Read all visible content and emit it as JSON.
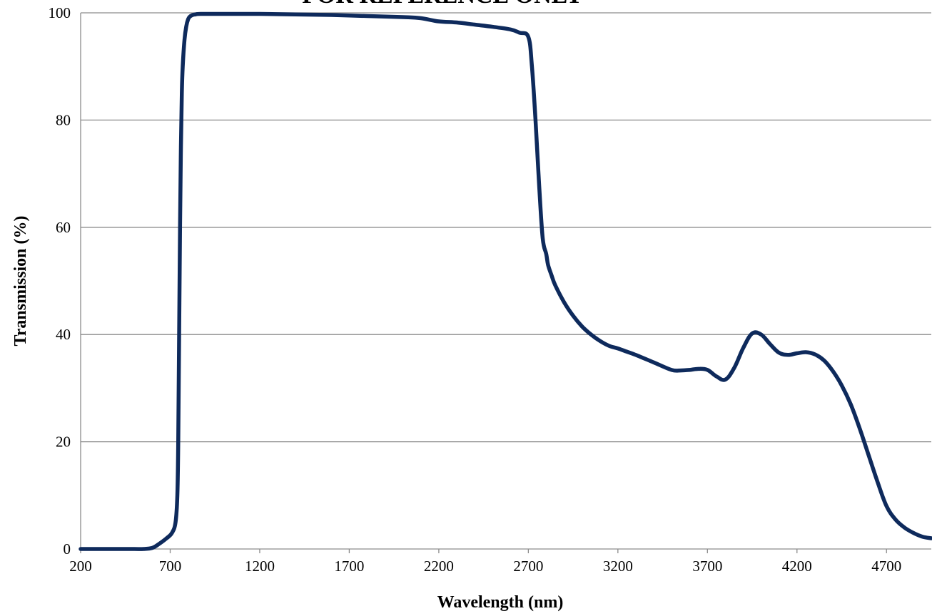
{
  "watermark": "FOR REFERENCE ONLY",
  "chart_data": {
    "type": "line",
    "title": "",
    "xlabel": "Wavelength (nm)",
    "ylabel": "Transmission (%)",
    "xlim": [
      200,
      4950
    ],
    "ylim": [
      0,
      100
    ],
    "xticks": [
      200,
      700,
      1200,
      1700,
      2200,
      2700,
      3200,
      3700,
      4200,
      4700
    ],
    "yticks": [
      0,
      20,
      40,
      60,
      80,
      100
    ],
    "grid": "horizontal",
    "line_color": "#0e2a5c",
    "series": [
      {
        "x": [
          200,
          300,
          400,
          500,
          550,
          600,
          640,
          680,
          710,
          730,
          740,
          745,
          750,
          755,
          760,
          765,
          770,
          780,
          790,
          800,
          810,
          825,
          840,
          870,
          1000,
          1200,
          1400,
          1600,
          1800,
          2000,
          2100,
          2200,
          2300,
          2400,
          2500,
          2600,
          2650,
          2700,
          2720,
          2740,
          2760,
          2780,
          2800,
          2810,
          2830,
          2850,
          2900,
          2950,
          3000,
          3050,
          3100,
          3150,
          3200,
          3250,
          3300,
          3400,
          3500,
          3550,
          3600,
          3650,
          3700,
          3750,
          3800,
          3850,
          3900,
          3950,
          4000,
          4050,
          4100,
          4150,
          4200,
          4250,
          4300,
          4350,
          4400,
          4450,
          4500,
          4550,
          4600,
          4650,
          4700,
          4750,
          4800,
          4850,
          4900,
          4950
        ],
        "y": [
          0,
          0,
          0,
          0,
          0,
          0.2,
          1,
          2,
          3,
          5,
          10,
          20,
          40,
          60,
          75,
          85,
          90,
          95,
          97.5,
          98.8,
          99.3,
          99.6,
          99.7,
          99.8,
          99.8,
          99.8,
          99.7,
          99.6,
          99.4,
          99.2,
          99,
          98.4,
          98.2,
          97.8,
          97.4,
          96.9,
          96.3,
          95.5,
          90,
          80,
          68,
          58,
          55,
          53,
          51,
          49.2,
          46,
          43.5,
          41.5,
          40,
          38.8,
          37.9,
          37.4,
          36.8,
          36.2,
          34.8,
          33.4,
          33.3,
          33.4,
          33.6,
          33.4,
          32.2,
          31.6,
          33.8,
          37.5,
          40.2,
          40,
          38.2,
          36.6,
          36.2,
          36.5,
          36.7,
          36.3,
          35.2,
          33.2,
          30.5,
          27,
          22.5,
          17.5,
          12.5,
          8,
          5.5,
          4,
          3,
          2.3,
          2
        ]
      }
    ]
  }
}
